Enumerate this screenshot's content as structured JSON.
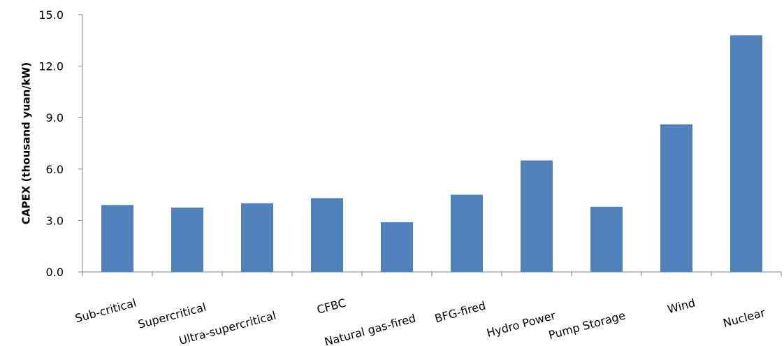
{
  "chart_data": {
    "type": "bar",
    "y_label": "CAPEX (thousand  yuan/kW)",
    "categories": [
      "Sub-critical",
      "Supercritical",
      "Ultra-supercritical",
      "CFBC",
      "Natural gas-fired",
      "BFG-fired",
      "Hydro Power",
      "Pump Storage",
      "Wind",
      "Nuclear"
    ],
    "values": [
      3.9,
      3.75,
      4.0,
      4.3,
      2.9,
      4.5,
      6.5,
      3.8,
      8.6,
      13.8
    ],
    "color": "#4f81bd",
    "ylim": [
      0,
      15
    ],
    "yticks": [
      {
        "value": 0,
        "label": "0.0"
      },
      {
        "value": 3,
        "label": "3.0"
      },
      {
        "value": 6,
        "label": "6.0"
      },
      {
        "value": 9,
        "label": "9.0"
      },
      {
        "value": 12,
        "label": "12.0"
      },
      {
        "value": 15,
        "label": "15.0"
      }
    ],
    "grid": false
  }
}
